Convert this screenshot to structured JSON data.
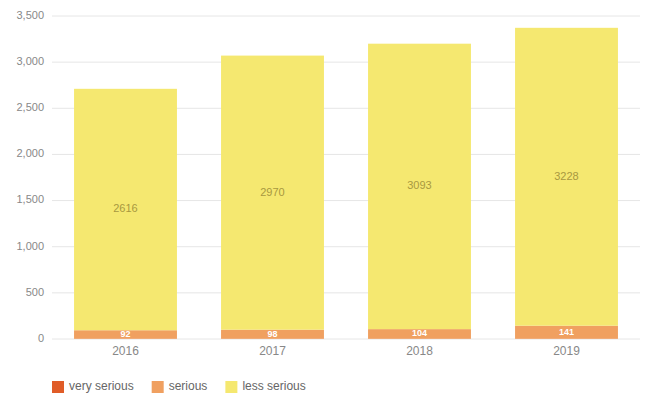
{
  "chart_data": {
    "type": "bar",
    "stacked": true,
    "categories": [
      "2016",
      "2017",
      "2018",
      "2019"
    ],
    "series": [
      {
        "name": "very serious",
        "color": "#e05c28",
        "values": [
          3,
          3,
          3,
          3
        ],
        "data_labels": false
      },
      {
        "name": "serious",
        "color": "#f0a060",
        "values": [
          92,
          98,
          104,
          141
        ],
        "data_labels": true
      },
      {
        "name": "less serious",
        "color": "#f5e870",
        "values": [
          2616,
          2970,
          3093,
          3228
        ],
        "data_labels": true
      }
    ],
    "ylim": [
      0,
      3500
    ],
    "yticks": [
      0,
      500,
      {
        "value": 1000,
        "label": "1,000"
      },
      {
        "value": 1500,
        "label": "1,500"
      },
      {
        "value": 2000,
        "label": "2,000"
      },
      {
        "value": 2500,
        "label": "2,500"
      },
      {
        "value": 3000,
        "label": "3,000"
      },
      {
        "value": 3500,
        "label": "3,500"
      }
    ],
    "grid": true,
    "legend": "bottom"
  }
}
